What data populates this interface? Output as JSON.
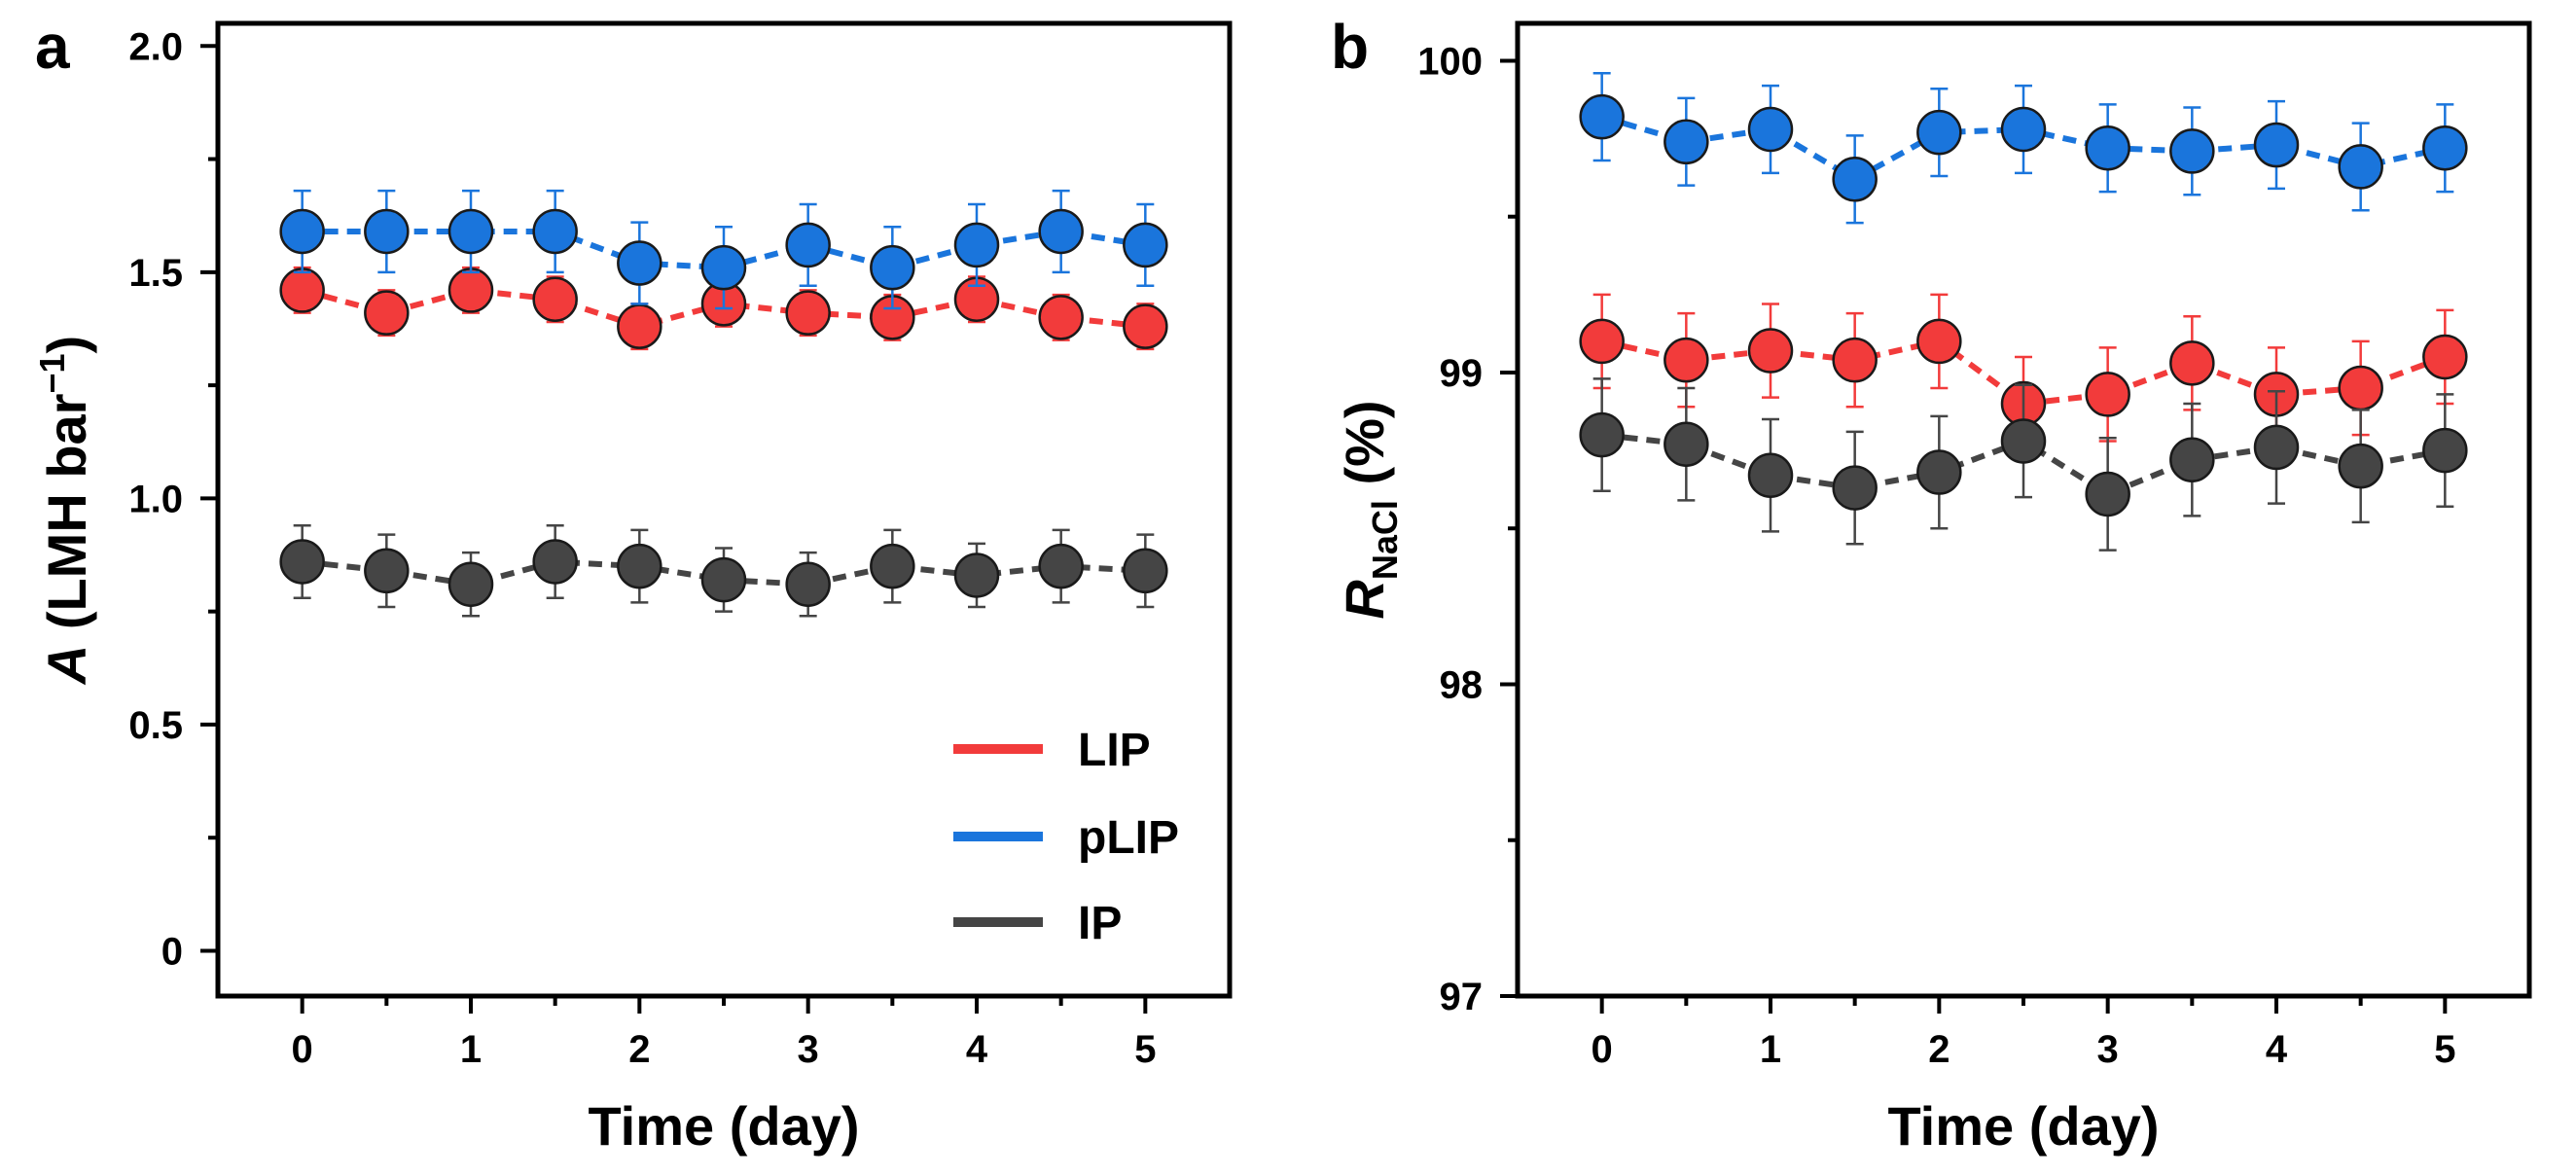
{
  "chart_data": [
    {
      "type": "line",
      "panel_label": "a",
      "xlabel": "Time (day)",
      "ylabel_italic": "A",
      "ylabel_rest": " (LMH bar",
      "ylabel_sup": "−1",
      "ylabel_close": ")",
      "xlim": [
        -0.5,
        5.5
      ],
      "ylim": [
        -0.1,
        2.05
      ],
      "xticks": [
        "0",
        "1",
        "2",
        "3",
        "4",
        "5"
      ],
      "yticks": [
        "0",
        "0.5",
        "1.0",
        "1.5",
        "2.0"
      ],
      "x": [
        0,
        0.5,
        1,
        1.5,
        2,
        2.5,
        3,
        3.5,
        4,
        4.5,
        5
      ],
      "series": [
        {
          "name": "LIP",
          "color": "#f23b3b",
          "values": [
            1.46,
            1.41,
            1.46,
            1.44,
            1.38,
            1.43,
            1.41,
            1.4,
            1.44,
            1.4,
            1.38
          ],
          "errors": [
            0.05,
            0.05,
            0.05,
            0.05,
            0.05,
            0.05,
            0.05,
            0.05,
            0.05,
            0.05,
            0.05
          ]
        },
        {
          "name": "pLIP",
          "color": "#1a75dc",
          "values": [
            1.59,
            1.59,
            1.59,
            1.59,
            1.52,
            1.51,
            1.56,
            1.51,
            1.56,
            1.59,
            1.56
          ],
          "errors": [
            0.09,
            0.09,
            0.09,
            0.09,
            0.09,
            0.09,
            0.09,
            0.09,
            0.09,
            0.09,
            0.09
          ]
        },
        {
          "name": "IP",
          "color": "#454545",
          "values": [
            0.86,
            0.84,
            0.81,
            0.86,
            0.85,
            0.82,
            0.81,
            0.85,
            0.83,
            0.85,
            0.84
          ],
          "errors": [
            0.08,
            0.08,
            0.07,
            0.08,
            0.08,
            0.07,
            0.07,
            0.08,
            0.07,
            0.08,
            0.08
          ]
        }
      ],
      "legend": {
        "placement": "bottom-right",
        "entries": [
          "LIP",
          "pLIP",
          "IP"
        ]
      }
    },
    {
      "type": "line",
      "panel_label": "b",
      "xlabel": "Time (day)",
      "ylabel_italic": "R",
      "ylabel_sub": "NaCl",
      "ylabel_rest": " (%)",
      "xlim": [
        -0.5,
        5.5
      ],
      "ylim": [
        97,
        100.12
      ],
      "xticks": [
        "0",
        "1",
        "2",
        "3",
        "4",
        "5"
      ],
      "yticks": [
        "97",
        "98",
        "99",
        "100"
      ],
      "x": [
        0,
        0.5,
        1,
        1.5,
        2,
        2.5,
        3,
        3.5,
        4,
        4.5,
        5
      ],
      "series": [
        {
          "name": "pLIP",
          "color": "#1a75dc",
          "values": [
            99.82,
            99.74,
            99.78,
            99.62,
            99.77,
            99.78,
            99.72,
            99.71,
            99.73,
            99.66,
            99.72
          ],
          "errors": [
            0.14,
            0.14,
            0.14,
            0.14,
            0.14,
            0.14,
            0.14,
            0.14,
            0.14,
            0.14,
            0.14
          ]
        },
        {
          "name": "LIP",
          "color": "#f23b3b",
          "values": [
            99.1,
            99.04,
            99.07,
            99.04,
            99.1,
            98.9,
            98.93,
            99.03,
            98.93,
            98.95,
            99.05
          ],
          "errors": [
            0.15,
            0.15,
            0.15,
            0.15,
            0.15,
            0.15,
            0.15,
            0.15,
            0.15,
            0.15,
            0.15
          ]
        },
        {
          "name": "IP",
          "color": "#454545",
          "values": [
            98.8,
            98.77,
            98.67,
            98.63,
            98.68,
            98.78,
            98.61,
            98.72,
            98.76,
            98.7,
            98.75
          ],
          "errors": [
            0.18,
            0.18,
            0.18,
            0.18,
            0.18,
            0.18,
            0.18,
            0.18,
            0.18,
            0.18,
            0.18
          ]
        }
      ]
    }
  ]
}
